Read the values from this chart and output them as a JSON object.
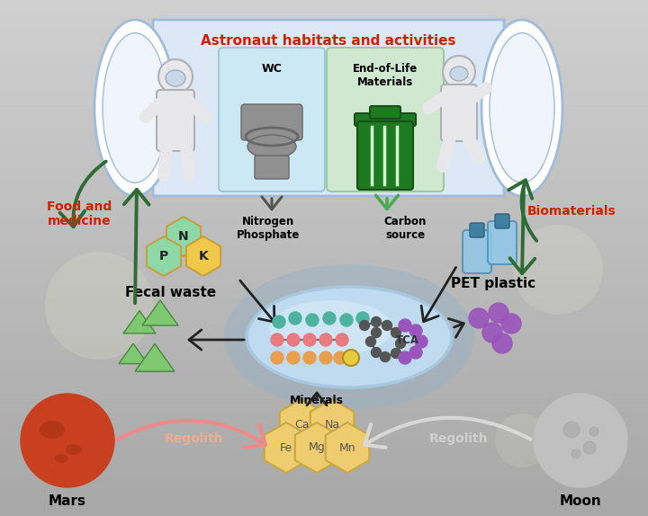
{
  "title": "Astronaut habitats and activities",
  "title_color": "#cc2200",
  "food_medicine_label": "Food and\nmedicine",
  "food_medicine_color": "#cc2200",
  "biomaterials_label": "Biomaterials",
  "biomaterials_color": "#cc2200",
  "fecal_waste_label": "Fecal waste",
  "nitrogen_phosphate_label": "Nitrogen\nPhosphate",
  "carbon_source_label": "Carbon\nsource",
  "pet_plastic_label": "PET plastic",
  "tca_label": "TCA",
  "minerals_label": "Minerals",
  "regolith_left_label": "Regolith",
  "regolith_right_label": "Regolith",
  "mars_label": "Mars",
  "moon_label": "Moon",
  "wc_label": "WC",
  "eol_label": "End-of-Life\nMaterials",
  "dark_green_arrow": "#2e6b35",
  "light_green_arrow": "#4aaa50",
  "pink_arrow": "#f08a8a",
  "white_arrow": "#d8d8d8",
  "tca_teal": "#4db3a0",
  "tca_gray": "#555555",
  "tca_pink": "#e87a80",
  "tca_purple": "#9955bb",
  "tca_orange": "#e8a050",
  "tca_yellow": "#e8cc40",
  "output_green": "#7dc870",
  "output_purple": "#9955bb",
  "hex_fill_green": "#8ed8a8",
  "hex_fill_yellow": "#f0c84a",
  "hex_stroke": "#c8a040",
  "min_hex_fill": "#f0cc70",
  "min_hex_stroke": "#c8a840",
  "tube_fill": "#dce8f5",
  "tube_stroke": "#a0bcdc",
  "wc_box_fill": "#cce8f5",
  "eol_box_fill": "#d0e8d0",
  "bact_outer": "#a8c8e0",
  "bact_fill": "#c0daf0",
  "bact_inner": "#d8eefa",
  "mars_base": "#c84020",
  "mars_dark": "#a03010",
  "moon_base": "#c0c0c0",
  "moon_crater": "#a8a8a8",
  "bg_top": "#d0d0d0",
  "bg_bot": "#a8a8a8"
}
